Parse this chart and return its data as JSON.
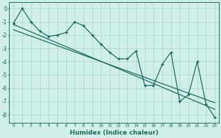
{
  "xlabel": "Humidex (Indice chaleur)",
  "background_color": "#d0eeea",
  "grid_color": "#b0d8d0",
  "line_color": "#1a6b5a",
  "xlim": [
    -0.5,
    23.5
  ],
  "ylim": [
    -8.6,
    0.5
  ],
  "xticks": [
    0,
    1,
    2,
    3,
    4,
    5,
    6,
    7,
    8,
    9,
    10,
    11,
    12,
    13,
    14,
    15,
    16,
    17,
    18,
    19,
    20,
    21,
    22,
    23
  ],
  "yticks": [
    0,
    -1,
    -2,
    -3,
    -4,
    -5,
    -6,
    -7,
    -8
  ],
  "data_x": [
    0,
    1,
    2,
    3,
    4,
    5,
    6,
    7,
    8,
    9,
    10,
    11,
    12,
    13,
    14,
    15,
    16,
    17,
    18,
    19,
    20,
    21,
    22,
    23
  ],
  "data_y": [
    -1.1,
    0.0,
    -1.0,
    -1.7,
    -2.1,
    -2.0,
    -1.8,
    -1.0,
    -1.3,
    -2.0,
    -2.7,
    -3.3,
    -3.8,
    -3.8,
    -3.2,
    -5.8,
    -5.8,
    -4.2,
    -3.3,
    -7.0,
    -6.5,
    -4.0,
    -7.2,
    -8.2
  ],
  "trend1_x": [
    0,
    23
  ],
  "trend1_y": [
    -1.2,
    -7.6
  ],
  "trend2_x": [
    0,
    23
  ],
  "trend2_y": [
    -1.6,
    -7.1
  ]
}
